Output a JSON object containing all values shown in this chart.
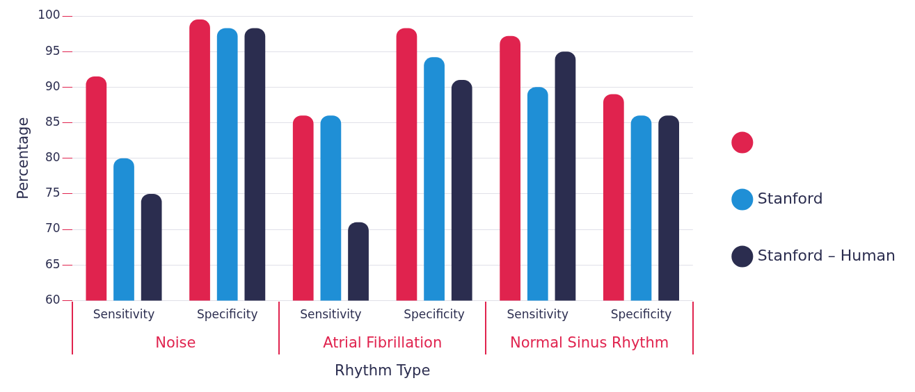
{
  "chart_data": {
    "type": "bar",
    "xlabel": "Rhythm Type",
    "ylabel": "Percentage",
    "categories": [
      "Sensitivity",
      "Specificity",
      "Sensitivity",
      "Specificity",
      "Sensitivity",
      "Specificity"
    ],
    "annotations": [
      "Noise",
      "Atrial Fibrillation",
      "Normal Sinus Rhythm"
    ],
    "series": [
      {
        "color": "#e0234e",
        "values": [
          91.5,
          99.5,
          86,
          98.3,
          97.2,
          89
        ]
      },
      {
        "name": "Stanford",
        "color": "#1f8fd6",
        "values": [
          80,
          98.3,
          86,
          94.2,
          90,
          86
        ]
      },
      {
        "name": "Stanford – Human",
        "color": "#2b2d4f",
        "values": [
          75,
          98.3,
          71,
          91,
          95,
          86
        ]
      }
    ],
    "ylim": [
      60,
      100
    ],
    "yticks": [
      60,
      65,
      70,
      75,
      80,
      85,
      90,
      95,
      100
    ],
    "grid": "y",
    "legend": "right"
  }
}
